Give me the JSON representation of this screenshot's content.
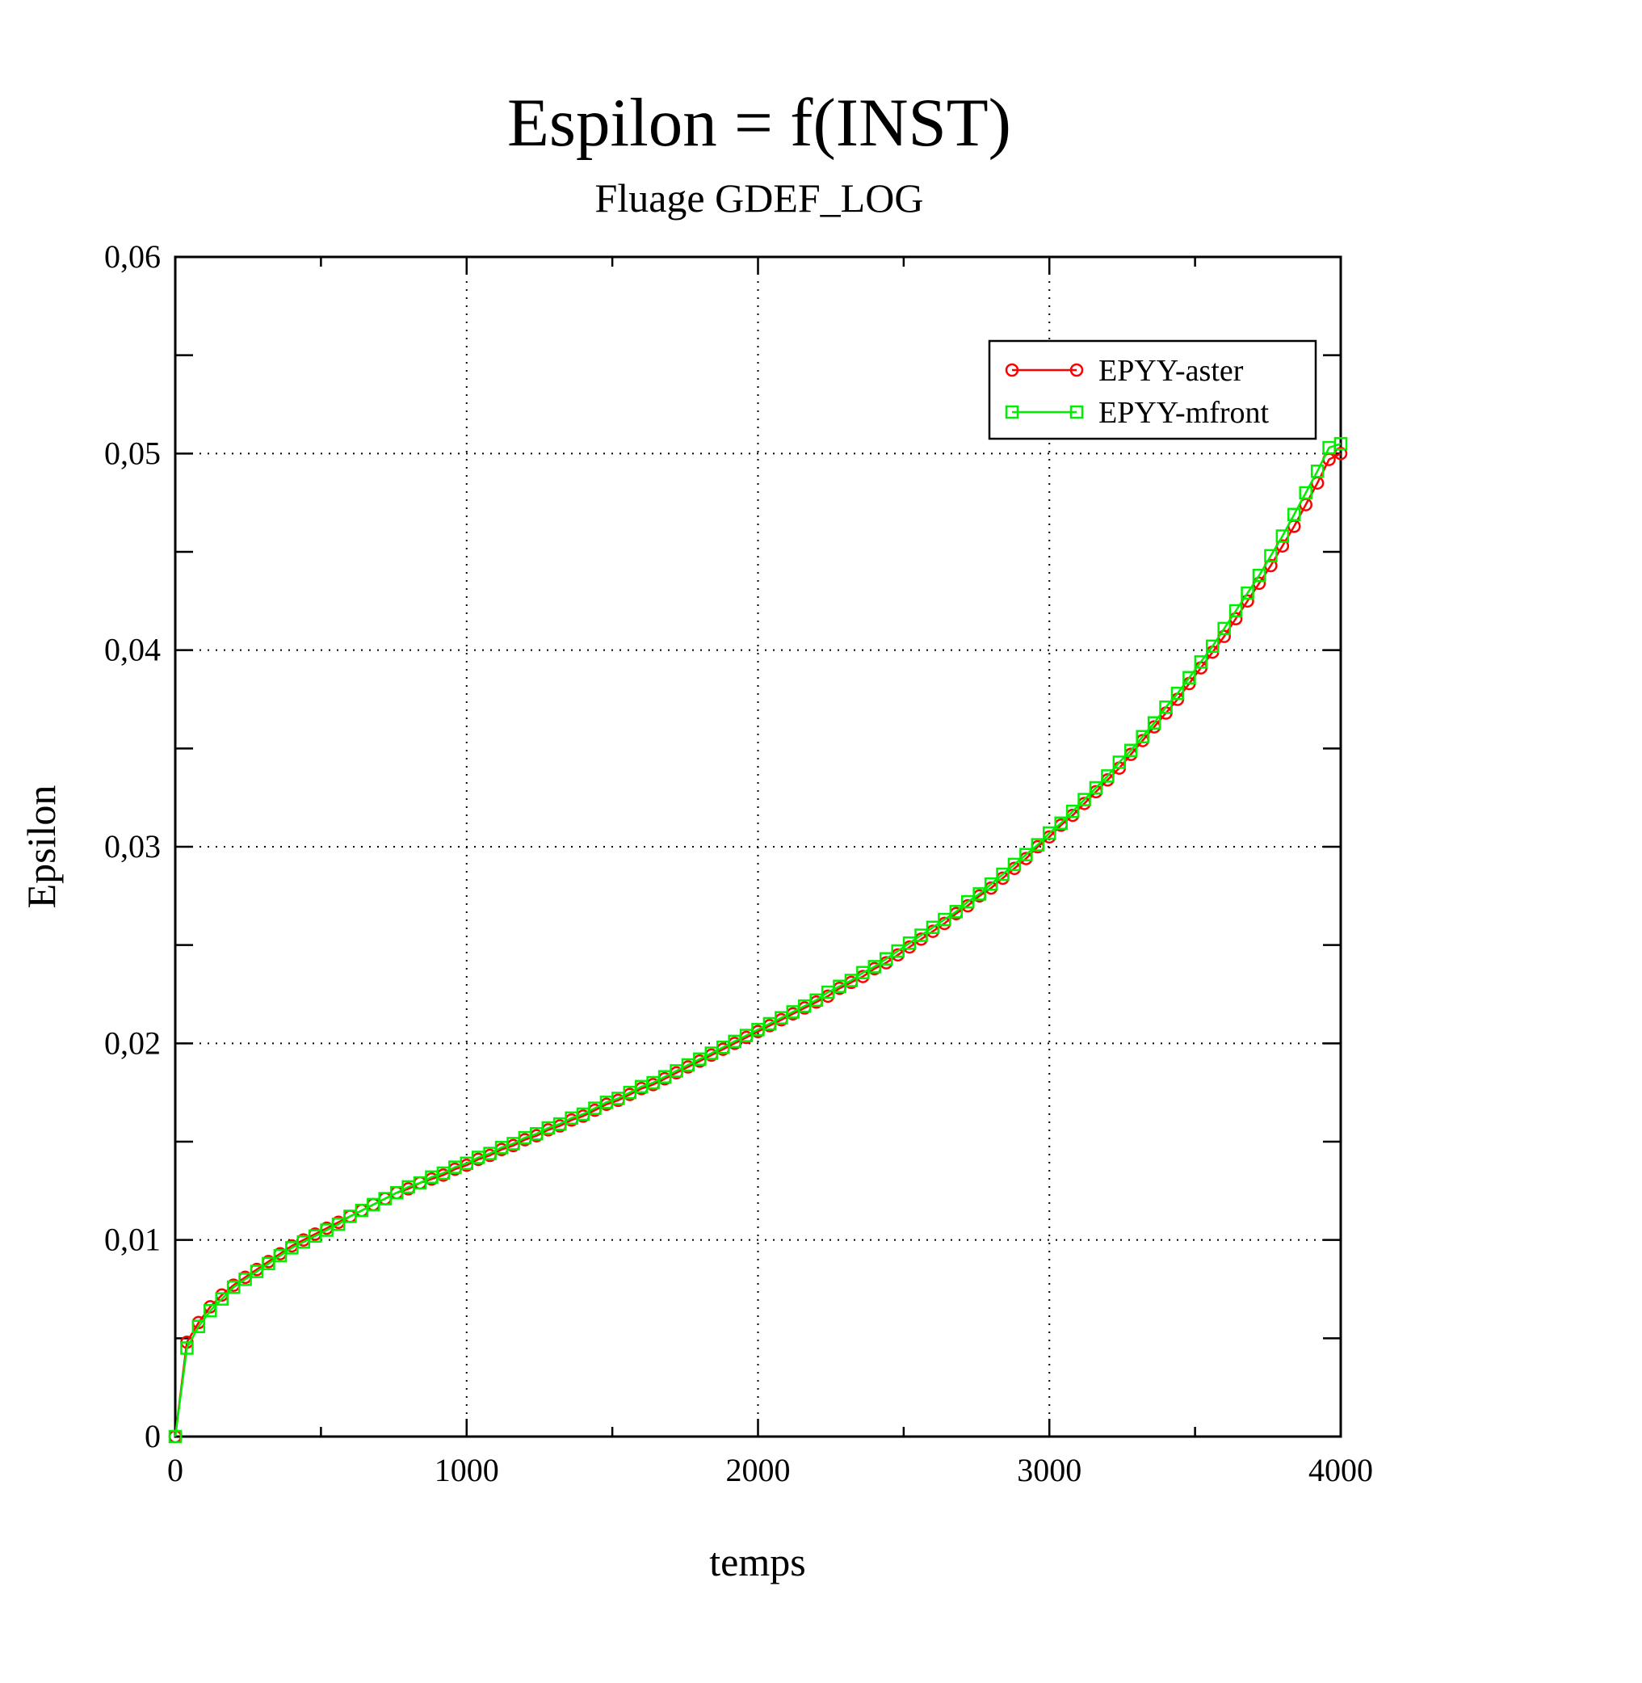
{
  "chart_data": {
    "type": "line",
    "title": "Espilon = f(INST)",
    "subtitle": "Fluage  GDEF_LOG",
    "xlabel": "temps",
    "ylabel": "Epsilon",
    "xlim": [
      0,
      4000
    ],
    "ylim": [
      0,
      0.06
    ],
    "x_ticks": [
      {
        "value": 0,
        "label": "0"
      },
      {
        "value": 1000,
        "label": "1000"
      },
      {
        "value": 2000,
        "label": "2000"
      },
      {
        "value": 3000,
        "label": "3000"
      },
      {
        "value": 4000,
        "label": "4000"
      }
    ],
    "y_ticks": [
      {
        "value": 0,
        "label": "0"
      },
      {
        "value": 0.01,
        "label": "0,01"
      },
      {
        "value": 0.02,
        "label": "0,02"
      },
      {
        "value": 0.03,
        "label": "0,03"
      },
      {
        "value": 0.04,
        "label": "0,04"
      },
      {
        "value": 0.05,
        "label": "0,05"
      },
      {
        "value": 0.06,
        "label": "0,06"
      }
    ],
    "x_minor_ticks": [
      500,
      1500,
      2500,
      3500
    ],
    "y_minor_ticks": [
      0.005,
      0.015,
      0.025,
      0.035,
      0.045,
      0.055
    ],
    "grid": true,
    "legend": "top-right",
    "sample_x": [
      0,
      40,
      80,
      120,
      160,
      200,
      240,
      280,
      320,
      360,
      400,
      440,
      480,
      520,
      560,
      600,
      640,
      680,
      720,
      760,
      800,
      840,
      880,
      920,
      960,
      1000,
      1040,
      1080,
      1120,
      1160,
      1200,
      1240,
      1280,
      1320,
      1360,
      1400,
      1440,
      1480,
      1520,
      1560,
      1600,
      1640,
      1680,
      1720,
      1760,
      1800,
      1840,
      1880,
      1920,
      1960,
      2000,
      2040,
      2080,
      2120,
      2160,
      2200,
      2240,
      2280,
      2320,
      2360,
      2400,
      2440,
      2480,
      2520,
      2560,
      2600,
      2640,
      2680,
      2720,
      2760,
      2800,
      2840,
      2880,
      2920,
      2960,
      3000,
      3040,
      3080,
      3120,
      3160,
      3200,
      3240,
      3280,
      3320,
      3360,
      3400,
      3440,
      3480,
      3520,
      3560,
      3600,
      3640,
      3680,
      3720,
      3760,
      3800,
      3840,
      3880,
      3920,
      3960,
      4000
    ],
    "series": [
      {
        "name": "EPYY-aster",
        "color": "#ff0000",
        "marker": "circle",
        "values": [
          0,
          0.0048,
          0.0058,
          0.0066,
          0.0072,
          0.0077,
          0.0081,
          0.0085,
          0.0089,
          0.0093,
          0.0097,
          0.01,
          0.0103,
          0.0106,
          0.0109,
          0.0112,
          0.0115,
          0.0118,
          0.0121,
          0.0124,
          0.0126,
          0.0129,
          0.0131,
          0.0133,
          0.0136,
          0.0138,
          0.0141,
          0.0143,
          0.0146,
          0.0148,
          0.0151,
          0.0153,
          0.0156,
          0.0158,
          0.0161,
          0.0163,
          0.0166,
          0.0169,
          0.0171,
          0.0174,
          0.0177,
          0.0179,
          0.0182,
          0.0185,
          0.0188,
          0.0191,
          0.0194,
          0.0197,
          0.02,
          0.0203,
          0.0206,
          0.0209,
          0.0212,
          0.0215,
          0.0218,
          0.0221,
          0.0224,
          0.0228,
          0.0231,
          0.0234,
          0.0238,
          0.0241,
          0.0245,
          0.0249,
          0.0253,
          0.0257,
          0.0261,
          0.0266,
          0.027,
          0.0275,
          0.0279,
          0.0284,
          0.0289,
          0.0294,
          0.03,
          0.0305,
          0.0311,
          0.0316,
          0.0322,
          0.0328,
          0.0334,
          0.034,
          0.0347,
          0.0354,
          0.0361,
          0.0368,
          0.0375,
          0.0383,
          0.0391,
          0.0399,
          0.0407,
          0.0416,
          0.0425,
          0.0434,
          0.0443,
          0.0453,
          0.0463,
          0.0474,
          0.0485,
          0.0497,
          0.05
        ]
      },
      {
        "name": "EPYY-mfront",
        "color": "#00ee00",
        "marker": "square",
        "values": [
          0,
          0.0045,
          0.0056,
          0.0064,
          0.007,
          0.0076,
          0.008,
          0.0084,
          0.0088,
          0.0092,
          0.0096,
          0.0099,
          0.0102,
          0.0105,
          0.0108,
          0.0112,
          0.0115,
          0.0118,
          0.0121,
          0.0124,
          0.0127,
          0.0129,
          0.0132,
          0.0134,
          0.0137,
          0.0139,
          0.0142,
          0.0144,
          0.0147,
          0.0149,
          0.0152,
          0.0154,
          0.0157,
          0.0159,
          0.0162,
          0.0164,
          0.0167,
          0.017,
          0.0172,
          0.0175,
          0.0178,
          0.018,
          0.0183,
          0.0186,
          0.0189,
          0.0192,
          0.0195,
          0.0198,
          0.0201,
          0.0204,
          0.0207,
          0.021,
          0.0213,
          0.0216,
          0.0219,
          0.0222,
          0.0226,
          0.0229,
          0.0232,
          0.0236,
          0.0239,
          0.0243,
          0.0247,
          0.0251,
          0.0255,
          0.0259,
          0.0263,
          0.0267,
          0.0272,
          0.0276,
          0.0281,
          0.0286,
          0.0291,
          0.0296,
          0.0301,
          0.0307,
          0.0312,
          0.0318,
          0.0324,
          0.033,
          0.0336,
          0.0343,
          0.0349,
          0.0356,
          0.0363,
          0.0371,
          0.0378,
          0.0386,
          0.0394,
          0.0402,
          0.0411,
          0.042,
          0.0429,
          0.0438,
          0.0448,
          0.0458,
          0.0469,
          0.048,
          0.0491,
          0.0503,
          0.0505
        ]
      }
    ]
  }
}
